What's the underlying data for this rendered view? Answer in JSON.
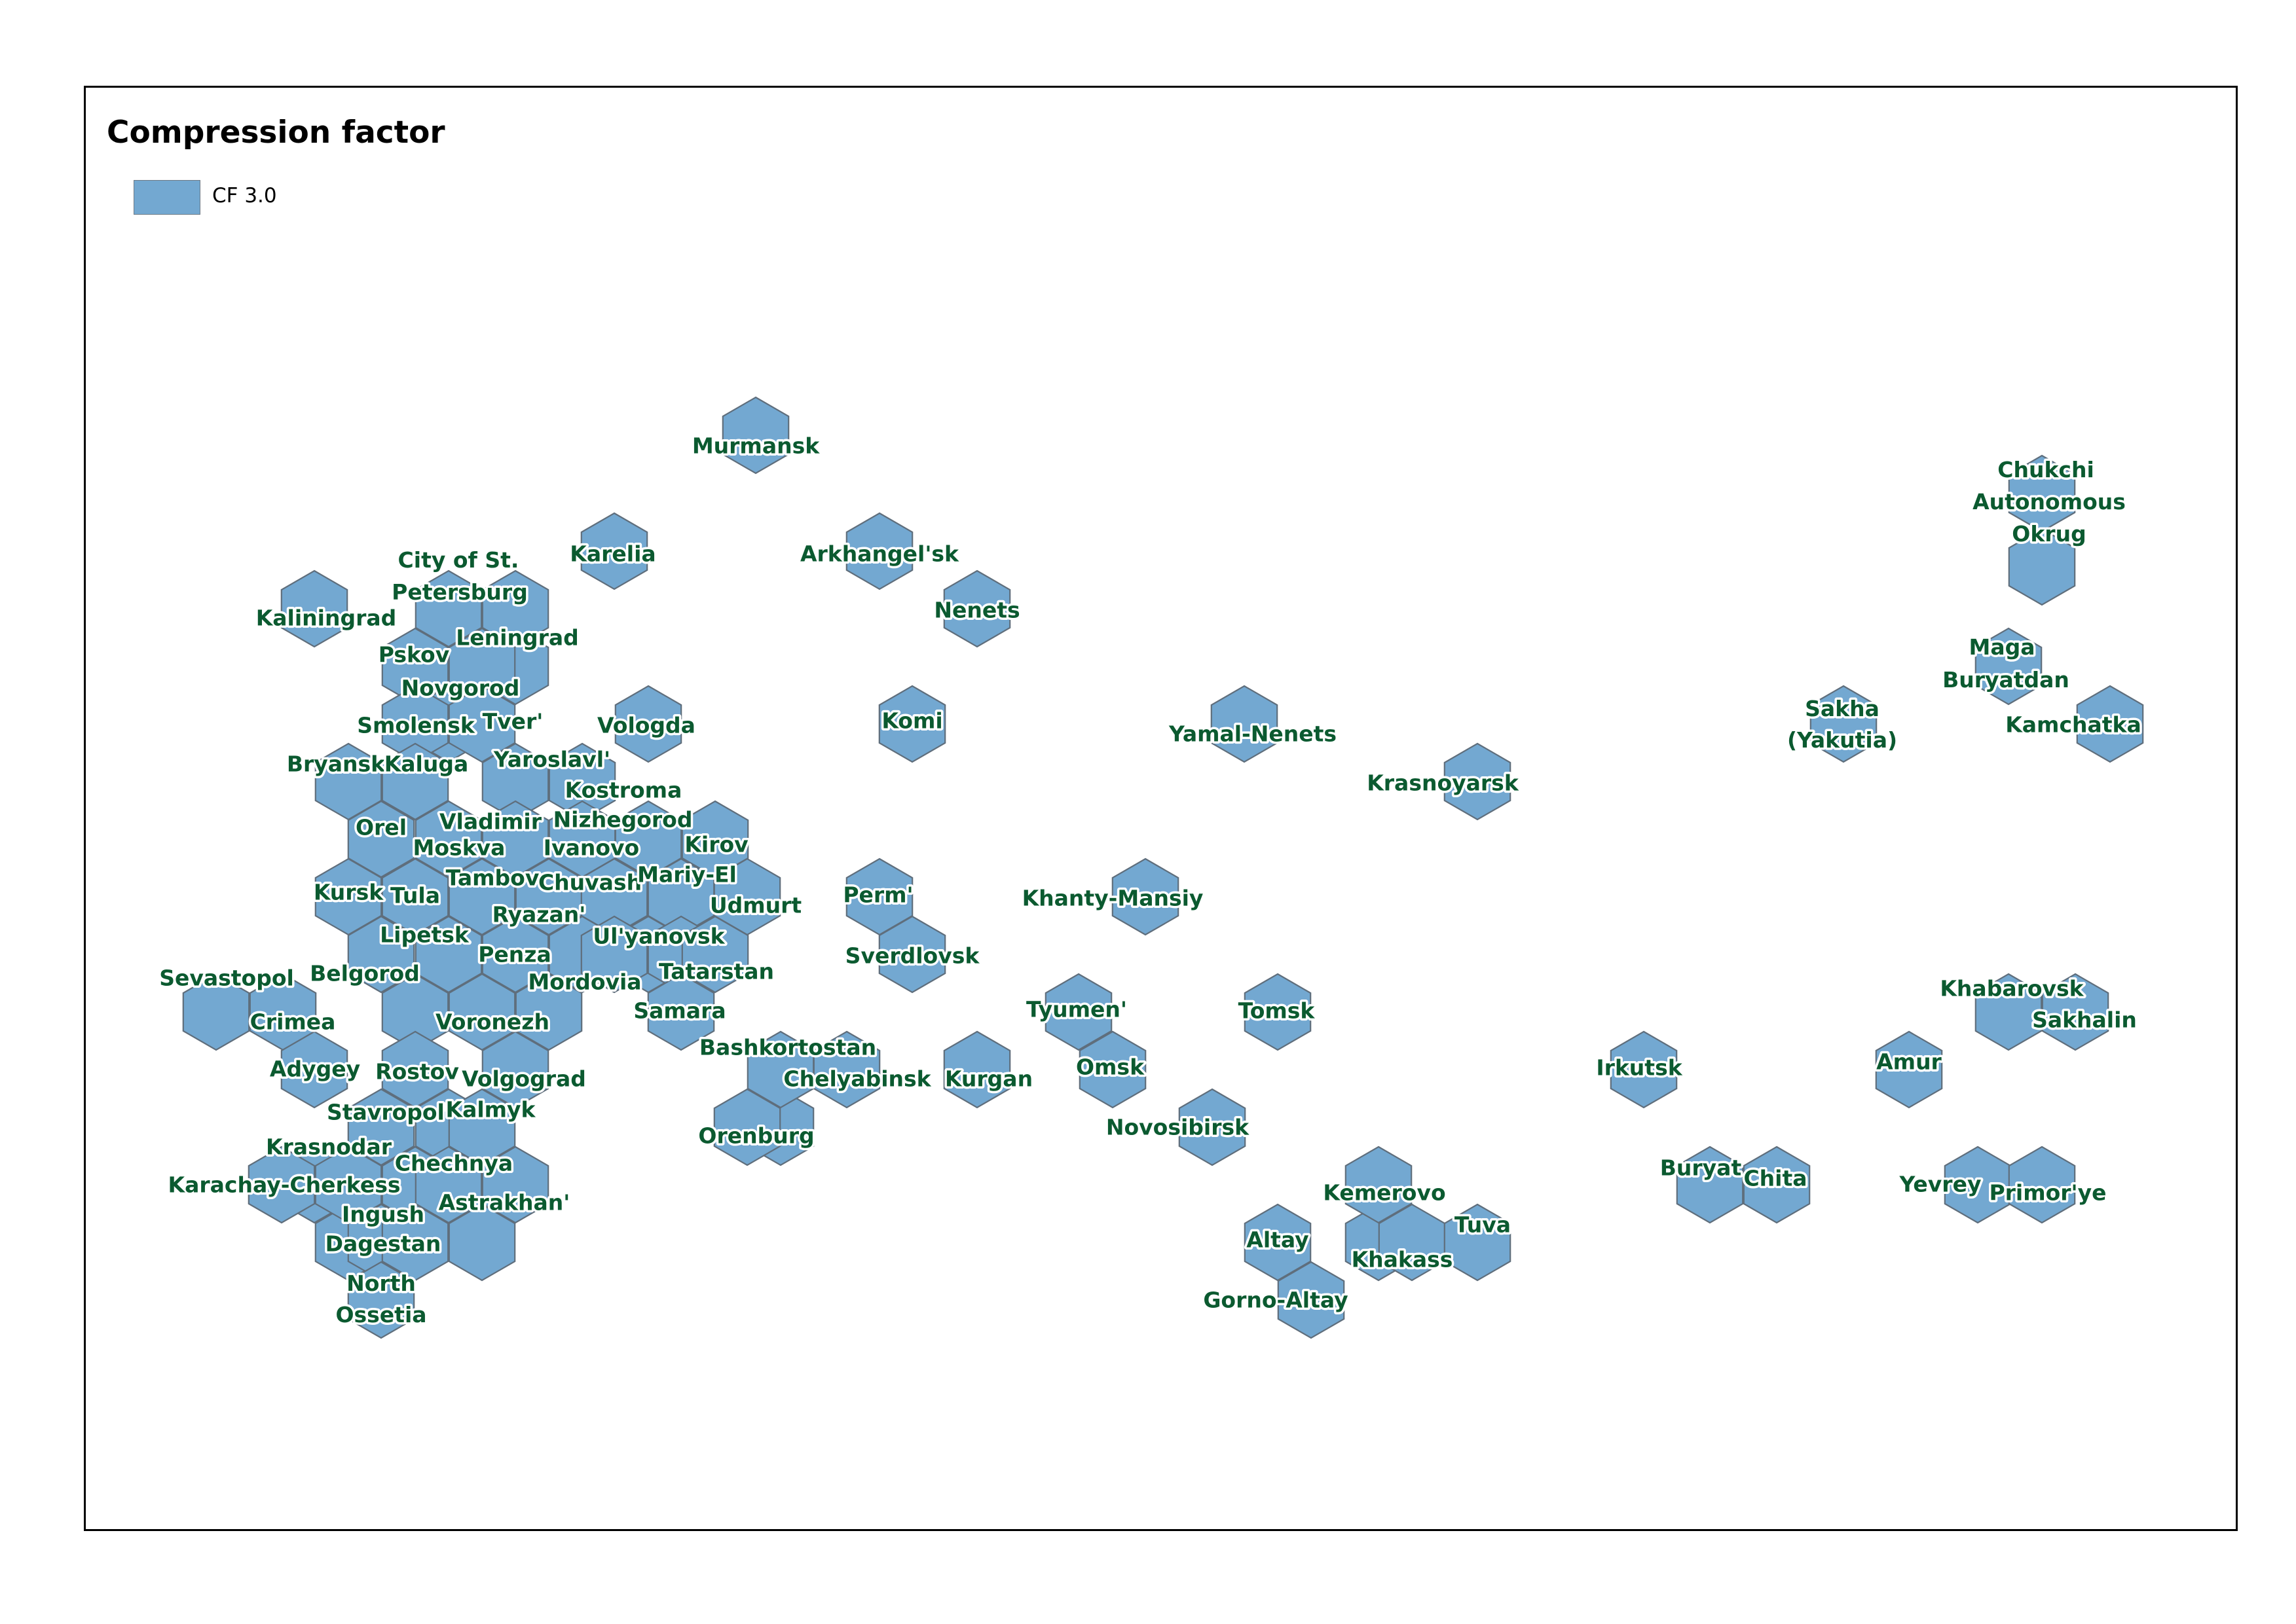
{
  "title": "Compression factor",
  "legend": {
    "label": "CF 3.0",
    "color": "#73a8d1"
  },
  "hex_fill": "#73a8d1",
  "regions": [
    {
      "id": "murmansk",
      "name": "Murmansk"
    },
    {
      "id": "karelia",
      "name": "Karelia"
    },
    {
      "id": "arkhangelsk",
      "name": "Arkhangel'sk"
    },
    {
      "id": "kaliningrad",
      "name": "Kaliningrad"
    },
    {
      "id": "st-petersburg",
      "name": "City of St. Petersburg"
    },
    {
      "id": "leningrad",
      "name": "Leningrad"
    },
    {
      "id": "nenets",
      "name": "Nenets"
    },
    {
      "id": "pskov",
      "name": "Pskov"
    },
    {
      "id": "novgorod",
      "name": "Novgorod"
    },
    {
      "id": "smolensk",
      "name": "Smolensk"
    },
    {
      "id": "tver",
      "name": "Tver'"
    },
    {
      "id": "vologda",
      "name": "Vologda"
    },
    {
      "id": "komi",
      "name": "Komi"
    },
    {
      "id": "bryansk",
      "name": "Bryansk"
    },
    {
      "id": "kaluga",
      "name": "Kaluga"
    },
    {
      "id": "yaroslavl",
      "name": "Yaroslavl'"
    },
    {
      "id": "kostroma",
      "name": "Kostroma"
    },
    {
      "id": "orel",
      "name": "Orel"
    },
    {
      "id": "moskva",
      "name": "Moskva"
    },
    {
      "id": "vladimir",
      "name": "Vladimir"
    },
    {
      "id": "ivanovo",
      "name": "Ivanovo"
    },
    {
      "id": "nizhegorod",
      "name": "Nizhegorod"
    },
    {
      "id": "kirov",
      "name": "Kirov"
    },
    {
      "id": "kursk",
      "name": "Kursk"
    },
    {
      "id": "tula",
      "name": "Tula"
    },
    {
      "id": "tambov",
      "name": "Tambov"
    },
    {
      "id": "chuvash",
      "name": "Chuvash"
    },
    {
      "id": "mariy-el",
      "name": "Mariy-El"
    },
    {
      "id": "udmurt",
      "name": "Udmurt"
    },
    {
      "id": "perm",
      "name": "Perm'"
    },
    {
      "id": "belgorod",
      "name": "Belgorod"
    },
    {
      "id": "lipetsk",
      "name": "Lipetsk"
    },
    {
      "id": "ryazan",
      "name": "Ryazan'"
    },
    {
      "id": "penza",
      "name": "Penza"
    },
    {
      "id": "mordovia",
      "name": "Mordovia"
    },
    {
      "id": "ulyanovsk",
      "name": "Ul'yanovsk"
    },
    {
      "id": "tatarstan",
      "name": "Tatarstan"
    },
    {
      "id": "sverdlovsk",
      "name": "Sverdlovsk"
    },
    {
      "id": "sevastopol",
      "name": "Sevastopol"
    },
    {
      "id": "crimea",
      "name": "Crimea"
    },
    {
      "id": "voronezh",
      "name": "Voronezh"
    },
    {
      "id": "samara",
      "name": "Samara"
    },
    {
      "id": "adygey",
      "name": "Adygey"
    },
    {
      "id": "rostov",
      "name": "Rostov"
    },
    {
      "id": "volgograd",
      "name": "Volgograd"
    },
    {
      "id": "bashkortostan",
      "name": "Bashkortostan"
    },
    {
      "id": "chelyabinsk",
      "name": "Chelyabinsk"
    },
    {
      "id": "kurgan",
      "name": "Kurgan"
    },
    {
      "id": "orenburg",
      "name": "Orenburg"
    },
    {
      "id": "stavropol",
      "name": "Stavropol'"
    },
    {
      "id": "kalmyk",
      "name": "Kalmyk"
    },
    {
      "id": "krasnodar",
      "name": "Krasnodar"
    },
    {
      "id": "chechnya",
      "name": "Chechnya"
    },
    {
      "id": "karachay-cherkess",
      "name": "Karachay-Cherkess"
    },
    {
      "id": "astrakhan",
      "name": "Astrakhan'"
    },
    {
      "id": "ingush",
      "name": "Ingush"
    },
    {
      "id": "dagestan",
      "name": "Dagestan"
    },
    {
      "id": "north-ossetia",
      "name": "North Ossetia"
    },
    {
      "id": "khanty-mansiy",
      "name": "Khanty-Mansiy"
    },
    {
      "id": "yamal-nenets",
      "name": "Yamal-Nenets"
    },
    {
      "id": "tyumen",
      "name": "Tyumen'"
    },
    {
      "id": "omsk",
      "name": "Omsk"
    },
    {
      "id": "tomsk",
      "name": "Tomsk"
    },
    {
      "id": "novosibirsk",
      "name": "Novosibirsk"
    },
    {
      "id": "krasnoyarsk",
      "name": "Krasnoyarsk"
    },
    {
      "id": "kemerovo",
      "name": "Kemerovo"
    },
    {
      "id": "khakass",
      "name": "Khakass"
    },
    {
      "id": "tuva",
      "name": "Tuva"
    },
    {
      "id": "altay",
      "name": "Altay"
    },
    {
      "id": "gorno-altay",
      "name": "Gorno-Altay"
    },
    {
      "id": "irkutsk",
      "name": "Irkutsk"
    },
    {
      "id": "buryat",
      "name": "Buryat"
    },
    {
      "id": "chita",
      "name": "Chita"
    },
    {
      "id": "sakha",
      "name": "Sakha (Yakutia)"
    },
    {
      "id": "maga-buryatdan",
      "name": "Maga Buryatdan"
    },
    {
      "id": "chukchi",
      "name": "Chukchi Autonomous Okrug"
    },
    {
      "id": "kamchatka",
      "name": "Kamchatka"
    },
    {
      "id": "khabarovsk",
      "name": "Khabarovsk"
    },
    {
      "id": "sakhalin",
      "name": "Sakhalin"
    },
    {
      "id": "amur",
      "name": "Amur"
    },
    {
      "id": "yevrey",
      "name": "Yevrey"
    },
    {
      "id": "primorye",
      "name": "Primor'ye"
    }
  ]
}
